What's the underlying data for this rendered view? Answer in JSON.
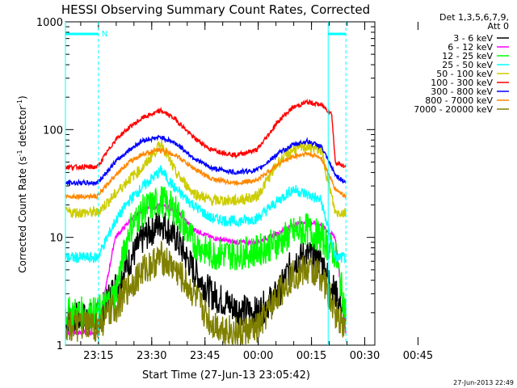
{
  "chart_data": {
    "type": "line",
    "title": "HESSI Observing Summary Count Rates, Corrected",
    "xlabel": "Start Time (27-Jun-13 23:05:42)",
    "ylabel_main": "Corrected Count Rate (s",
    "ylabel_sup1": "-1",
    "ylabel_mid": " detector",
    "ylabel_sup2": "-1",
    "ylabel_end": ")",
    "yscale": "log",
    "ylim": [
      1,
      1000
    ],
    "xlim_minutes": [
      0,
      79
    ],
    "xticks": [
      {
        "min": 9.3,
        "label": "23:15"
      },
      {
        "min": 24.3,
        "label": "23:30"
      },
      {
        "min": 39.3,
        "label": "23:45"
      },
      {
        "min": 54.3,
        "label": "00:00"
      },
      {
        "min": 69.3,
        "label": "00:15"
      },
      {
        "min": 84.3,
        "label": "00:30"
      },
      {
        "min": 99.3,
        "label": "00:45"
      }
    ],
    "yticks": [
      {
        "v": 1,
        "label": "1"
      },
      {
        "v": 10,
        "label": "10"
      },
      {
        "v": 100,
        "label": "100"
      },
      {
        "v": 1000,
        "label": "1000"
      }
    ],
    "legend_header": [
      "Det 1,3,5,6,7,9,",
      "Att 0"
    ],
    "legend_placement": "right",
    "series": [
      {
        "name": "3 - 6 keV",
        "color": "#000000",
        "x": [
          0,
          9,
          14,
          18,
          22,
          27,
          31,
          36,
          41,
          48,
          54,
          60,
          64,
          68,
          72,
          76,
          79
        ],
        "y": [
          1.8,
          1.8,
          3.5,
          6,
          10,
          14,
          10,
          5,
          3,
          2.2,
          2,
          3,
          6,
          7,
          6,
          3,
          1.8
        ]
      },
      {
        "name": "6 - 12 keV",
        "color": "#ff00ff",
        "x": [
          0,
          9,
          14,
          18,
          22,
          27,
          31,
          36,
          41,
          48,
          54,
          60,
          64,
          68,
          72,
          76,
          79
        ],
        "y": [
          1.3,
          1.3,
          10,
          14,
          18,
          20,
          18,
          12,
          10,
          9,
          9,
          11,
          13,
          14,
          13,
          10,
          1.3
        ]
      },
      {
        "name": "12 - 25 keV",
        "color": "#00ff00",
        "x": [
          0,
          9,
          14,
          18,
          22,
          27,
          31,
          36,
          41,
          48,
          54,
          60,
          64,
          68,
          72,
          76,
          79
        ],
        "y": [
          2,
          2,
          3,
          12,
          18,
          22,
          18,
          9,
          7,
          7,
          7.5,
          9,
          11,
          12,
          10,
          7,
          2
        ]
      },
      {
        "name": "25 - 50 keV",
        "color": "#00ffff",
        "x": [
          0,
          9,
          14,
          18,
          22,
          27,
          31,
          36,
          41,
          48,
          54,
          60,
          64,
          68,
          72,
          76,
          79
        ],
        "y": [
          6.5,
          6.5,
          14,
          22,
          30,
          42,
          28,
          20,
          15,
          14,
          15,
          22,
          28,
          25,
          22,
          6.5,
          6.5
        ]
      },
      {
        "name": "50 - 100 keV",
        "color": "#cccc00",
        "x": [
          0,
          9,
          14,
          18,
          22,
          27,
          31,
          36,
          41,
          48,
          54,
          60,
          64,
          68,
          72,
          76,
          79
        ],
        "y": [
          17,
          17,
          25,
          35,
          45,
          75,
          40,
          26,
          22,
          22,
          24,
          50,
          65,
          70,
          65,
          17,
          17
        ]
      },
      {
        "name": "100 - 300 keV",
        "color": "#ff0000",
        "x": [
          0,
          9,
          14,
          18,
          22,
          27,
          31,
          36,
          41,
          48,
          54,
          60,
          64,
          68,
          72,
          75,
          76,
          79
        ],
        "y": [
          45,
          45,
          80,
          105,
          130,
          150,
          125,
          85,
          65,
          58,
          65,
          120,
          160,
          180,
          170,
          140,
          50,
          45
        ]
      },
      {
        "name": "300 - 800 keV",
        "color": "#0000ff",
        "x": [
          0,
          9,
          14,
          18,
          22,
          27,
          31,
          36,
          41,
          48,
          54,
          60,
          64,
          68,
          72,
          76,
          79
        ],
        "y": [
          32,
          32,
          50,
          65,
          80,
          85,
          75,
          55,
          44,
          40,
          42,
          60,
          72,
          78,
          70,
          38,
          32
        ]
      },
      {
        "name": "800 - 7000 keV",
        "color": "#ff8800",
        "x": [
          0,
          9,
          14,
          18,
          22,
          27,
          31,
          36,
          41,
          48,
          54,
          60,
          64,
          68,
          72,
          76,
          79
        ],
        "y": [
          24,
          24,
          38,
          50,
          60,
          65,
          58,
          44,
          35,
          32,
          34,
          48,
          56,
          60,
          55,
          28,
          24
        ]
      },
      {
        "name": "7000 - 20000 keV",
        "color": "#808000",
        "x": [
          0,
          9,
          14,
          18,
          22,
          27,
          31,
          36,
          41,
          48,
          54,
          60,
          64,
          68,
          72,
          76,
          79
        ],
        "y": [
          1.5,
          1.5,
          2.2,
          3.5,
          5,
          6.5,
          5,
          3,
          1.6,
          1.3,
          1.4,
          3,
          4.5,
          5,
          4.5,
          2,
          1.5
        ]
      }
    ],
    "annotations": [
      {
        "text": "N",
        "at_min": 10.2,
        "color": "#00ffff"
      }
    ],
    "night_segments_min": [
      [
        0,
        9.3
      ],
      [
        74,
        79
      ]
    ],
    "saa_markers_min": [
      0,
      9.3,
      74,
      79
    ],
    "footer_text": "27-Jun-2013 22:49"
  }
}
